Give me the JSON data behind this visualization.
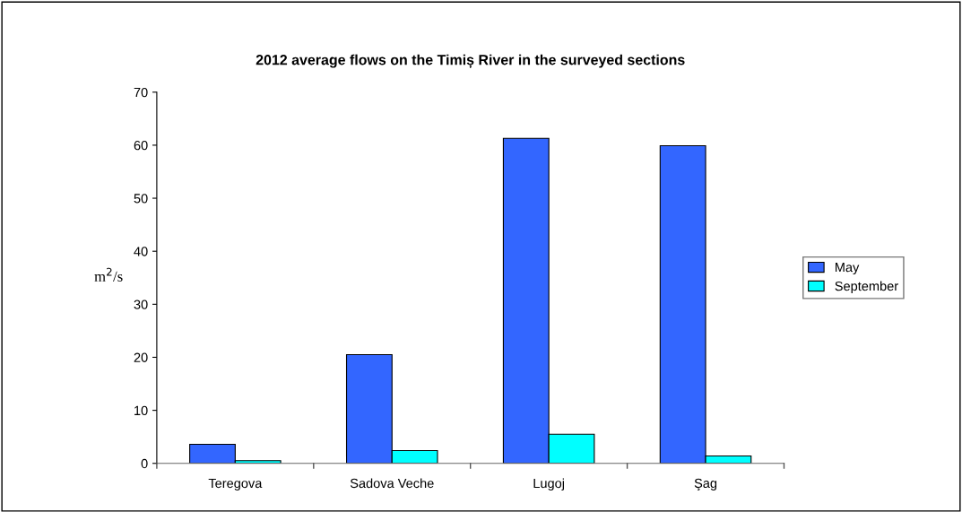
{
  "chart_data": {
    "type": "bar",
    "title": "2012 average flows on the Timiș River in the surveyed sections",
    "ylabel": "m$^{2}$/s",
    "categories": [
      "Teregova",
      "Sadova Veche",
      "Lugoj",
      "Şag"
    ],
    "series": [
      {
        "name": "May",
        "color": "#3366ff",
        "values": [
          3.6,
          20.5,
          61.3,
          59.9
        ]
      },
      {
        "name": "September",
        "color": "#00ffff",
        "values": [
          0.5,
          2.4,
          5.5,
          1.4
        ]
      }
    ],
    "ylim": [
      0,
      70
    ],
    "yticks": [
      0,
      10,
      20,
      30,
      40,
      50,
      60,
      70
    ],
    "grid": false,
    "legend": "right"
  }
}
